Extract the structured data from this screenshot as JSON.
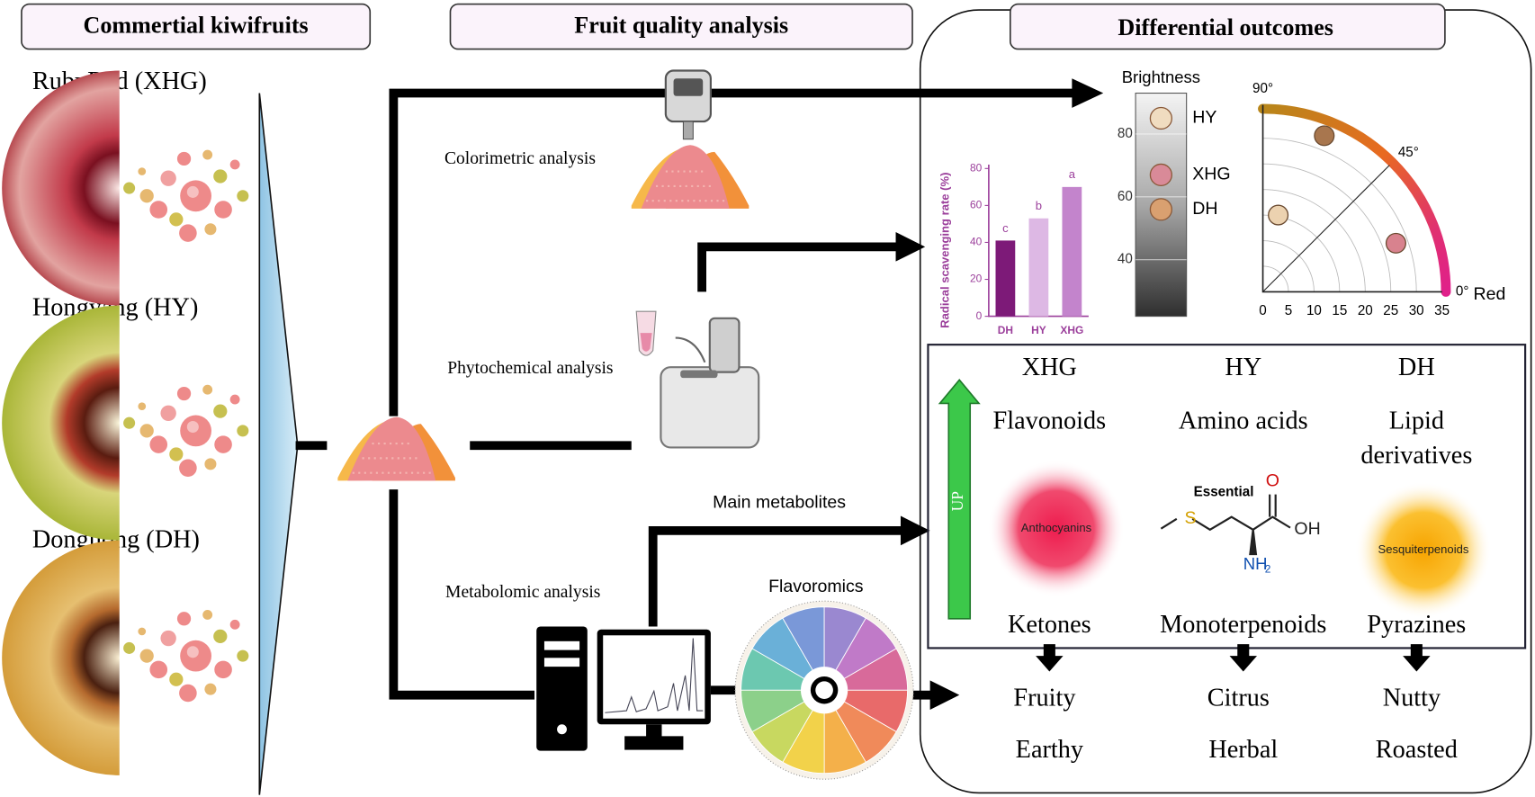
{
  "headers": {
    "cultivars": "Commertial kiwifruits",
    "analysis": "Fruit quality analysis",
    "outcomes": "Differential outcomes"
  },
  "cultivars": [
    "RubyRed (XHG)",
    "Hongyang (HY)",
    "Donghong (DH)"
  ],
  "analyses": {
    "colorimetric": "Colorimetric analysis",
    "phytochemical": "Phytochemical analysis",
    "metabolomic": "Metabolomic analysis",
    "main_metabolites": "Main metabolites",
    "flavoromics": "Flavoromics"
  },
  "chart_data": [
    {
      "type": "bar",
      "ylabel": "Radical scavenging rate (%)",
      "categories": [
        "DH",
        "HY",
        "XHG"
      ],
      "values": [
        41,
        53,
        70
      ],
      "colors": [
        "#7d1a78",
        "#ddb8e4",
        "#c384cc"
      ],
      "annotations": [
        "c",
        "b",
        "a"
      ],
      "ylim": [
        0,
        80
      ],
      "yticks": [
        0,
        20,
        40,
        60,
        80
      ]
    },
    {
      "type": "strip",
      "title": "Brightness",
      "categories": [
        "HY",
        "XHG",
        "DH"
      ],
      "values": [
        85,
        67,
        56
      ],
      "colors": [
        "#f0dcc0",
        "#d98a98",
        "#d9a070"
      ],
      "ylim": [
        22,
        93
      ],
      "yticks": [
        40,
        60,
        80
      ]
    },
    {
      "type": "polar",
      "xlabel": "Red",
      "x": [
        12,
        3,
        26
      ],
      "y": [
        30.5,
        15,
        9.5
      ],
      "colors": [
        "#a8764e",
        "#ecd2b0",
        "#d8828e"
      ],
      "xlim": [
        0,
        35
      ],
      "xticks": [
        0,
        5,
        10,
        15,
        20,
        25,
        30,
        35
      ],
      "angle_ticks": [
        {
          "value": 90,
          "label": "90°"
        },
        {
          "value": 45,
          "label": "45°"
        },
        {
          "value": 0,
          "label": "0°"
        }
      ]
    }
  ],
  "outcomes": {
    "up": "UP",
    "columns": [
      {
        "cultivar": "XHG",
        "class": [
          "Flavonoids"
        ],
        "compound": "Anthocyanins",
        "color": "#ee1c4e",
        "aroma": "Ketones",
        "flavors": [
          "Fruity",
          "Earthy"
        ]
      },
      {
        "cultivar": "HY",
        "class": [
          "Amino acids"
        ],
        "compound": "Essential",
        "atoms": [
          "S",
          "O",
          "OH",
          "NH",
          "2"
        ],
        "aroma": "Monoterpenoids",
        "flavors": [
          "Citrus",
          "Herbal"
        ]
      },
      {
        "cultivar": "DH",
        "class": [
          "Lipid",
          "derivatives"
        ],
        "compound": "Sesquiterpenoids",
        "color": "#f7a400",
        "aroma": "Pyrazines",
        "flavors": [
          "Nutty",
          "Roasted"
        ]
      }
    ]
  }
}
